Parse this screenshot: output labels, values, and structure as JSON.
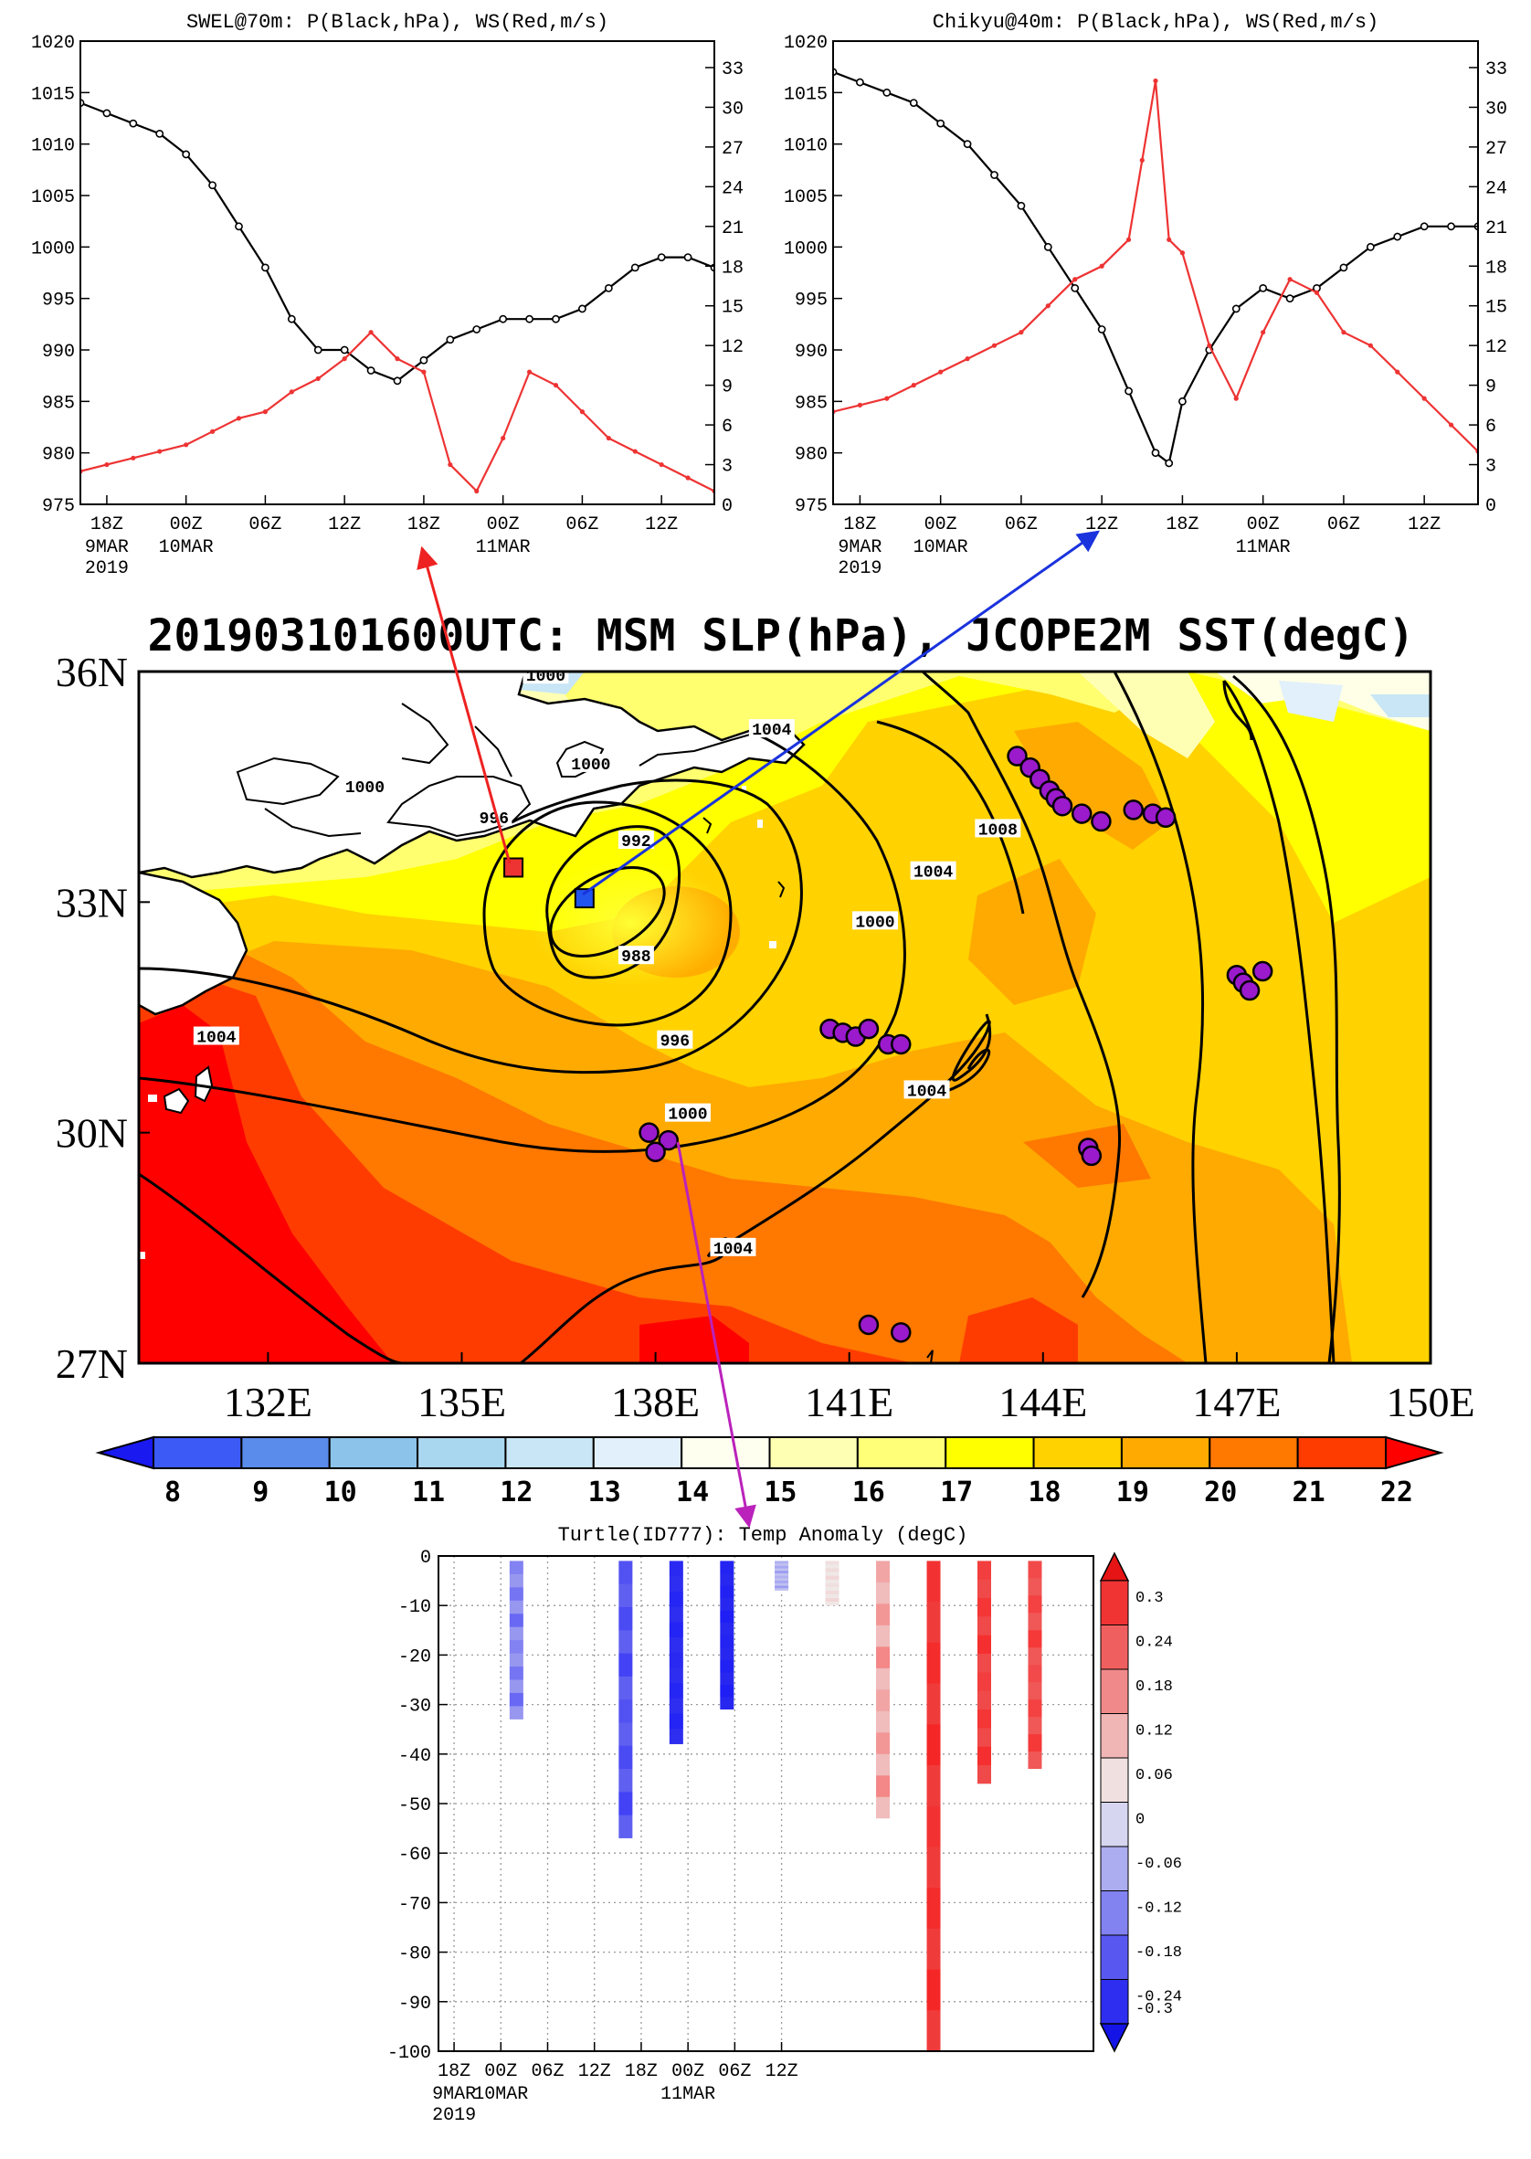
{
  "chart_data": [
    {
      "type": "line",
      "title": "SWEL@70m: P(Black,hPa), WS(Red,m/s)",
      "x_ticks": [
        "18Z",
        "00Z",
        "06Z",
        "12Z",
        "18Z",
        "00Z",
        "06Z",
        "12Z"
      ],
      "x_date_labels": [
        {
          "tick": "18Z",
          "lines": [
            "9MAR",
            "2019"
          ]
        },
        {
          "tick": "00Z",
          "lines": [
            "10MAR"
          ]
        },
        {
          "tick": "00Z",
          "lines": [
            "11MAR"
          ]
        }
      ],
      "y_left_ticks": [
        975,
        980,
        985,
        990,
        995,
        1000,
        1005,
        1010,
        1015,
        1020
      ],
      "y_right_ticks": [
        0,
        3,
        6,
        9,
        12,
        15,
        18,
        21,
        24,
        27,
        30,
        33
      ],
      "ylim_left": [
        975,
        1020
      ],
      "ylim_right": [
        0,
        35
      ],
      "xlim_hours": [
        -8,
        40
      ],
      "series": [
        {
          "name": "P",
          "color": "#000000",
          "axis": "left",
          "x": [
            -8,
            -6,
            -4,
            -2,
            0,
            2,
            4,
            6,
            8,
            10,
            12,
            14,
            16,
            18,
            20,
            22,
            24,
            26,
            28,
            30,
            32,
            34,
            36,
            38,
            40
          ],
          "y": [
            1014,
            1013,
            1012,
            1011,
            1009,
            1006,
            1002,
            998,
            993,
            990,
            990,
            988,
            987,
            989,
            991,
            992,
            993,
            993,
            993,
            994,
            996,
            998,
            999,
            999,
            998
          ]
        },
        {
          "name": "WS",
          "color": "#ee3333",
          "axis": "right",
          "x": [
            -8,
            -6,
            -4,
            -2,
            0,
            2,
            4,
            6,
            8,
            10,
            12,
            14,
            16,
            18,
            20,
            22,
            24,
            26,
            28,
            30,
            32,
            34,
            36,
            38,
            40
          ],
          "y": [
            2.5,
            3,
            3.5,
            4,
            4.5,
            5.5,
            6.5,
            7,
            8.5,
            9.5,
            11,
            13,
            11,
            10,
            3,
            1,
            5,
            10,
            9,
            7,
            5,
            4,
            3,
            2,
            1
          ]
        }
      ]
    },
    {
      "type": "line",
      "title": "Chikyu@40m: P(Black,hPa), WS(Red,m/s)",
      "x_ticks": [
        "18Z",
        "00Z",
        "06Z",
        "12Z",
        "18Z",
        "00Z",
        "06Z",
        "12Z"
      ],
      "x_date_labels": [
        {
          "tick": "18Z",
          "lines": [
            "9MAR",
            "2019"
          ]
        },
        {
          "tick": "00Z",
          "lines": [
            "10MAR"
          ]
        },
        {
          "tick": "00Z",
          "lines": [
            "11MAR"
          ]
        }
      ],
      "y_left_ticks": [
        975,
        980,
        985,
        990,
        995,
        1000,
        1005,
        1010,
        1015,
        1020
      ],
      "y_right_ticks": [
        0,
        3,
        6,
        9,
        12,
        15,
        18,
        21,
        24,
        27,
        30,
        33
      ],
      "ylim_left": [
        975,
        1020
      ],
      "ylim_right": [
        0,
        35
      ],
      "xlim_hours": [
        -8,
        40
      ],
      "series": [
        {
          "name": "P",
          "color": "#000000",
          "axis": "left",
          "x": [
            -8,
            -6,
            -4,
            -2,
            0,
            2,
            4,
            6,
            8,
            10,
            12,
            14,
            16,
            17,
            18,
            20,
            22,
            24,
            26,
            28,
            30,
            32,
            34,
            36,
            38,
            40
          ],
          "y": [
            1017,
            1016,
            1015,
            1014,
            1012,
            1010,
            1007,
            1004,
            1000,
            996,
            992,
            986,
            980,
            979,
            985,
            990,
            994,
            996,
            995,
            996,
            998,
            1000,
            1001,
            1002,
            1002,
            1002
          ]
        },
        {
          "name": "WS",
          "color": "#ee3333",
          "axis": "right",
          "x": [
            -8,
            -6,
            -4,
            -2,
            0,
            2,
            4,
            6,
            8,
            10,
            12,
            14,
            15,
            16,
            17,
            18,
            20,
            22,
            24,
            26,
            28,
            30,
            32,
            34,
            36,
            38,
            40
          ],
          "y": [
            7,
            7.5,
            8,
            9,
            10,
            11,
            12,
            13,
            15,
            17,
            18,
            20,
            26,
            32,
            20,
            19,
            12,
            8,
            13,
            17,
            16,
            13,
            12,
            10,
            8,
            6,
            4
          ]
        }
      ]
    },
    {
      "type": "heatmap",
      "title": "201903101600UTC: MSM SLP(hPa), JCOPE2M SST(degC)",
      "y_ticks": [
        "27N",
        "30N",
        "33N",
        "36N"
      ],
      "x_ticks": [
        "132E",
        "135E",
        "138E",
        "141E",
        "144E",
        "147E",
        "150E"
      ],
      "lon_range": [
        130,
        150
      ],
      "lat_range": [
        27,
        36
      ],
      "colorbar_ticks": [
        8,
        9,
        10,
        11,
        12,
        13,
        14,
        15,
        16,
        17,
        18,
        19,
        20,
        21,
        22
      ],
      "colorbar_colors": [
        "#1919f0",
        "#3c5af5",
        "#5a8ceb",
        "#8cc3eb",
        "#aad7f0",
        "#c8e6f5",
        "#e1f0fa",
        "#fffff0",
        "#ffffb4",
        "#ffff78",
        "#ffff00",
        "#ffd200",
        "#ffaa00",
        "#ff7800",
        "#ff3c00",
        "#ff0000"
      ],
      "isobar_labels": [
        {
          "text": "1000",
          "lon": 136.3,
          "lat": 35.95
        },
        {
          "text": "1000",
          "lon": 137.0,
          "lat": 34.8
        },
        {
          "text": "1004",
          "lon": 139.8,
          "lat": 35.25
        },
        {
          "text": "1000",
          "lon": 133.5,
          "lat": 34.5
        },
        {
          "text": "996",
          "lon": 135.5,
          "lat": 34.1
        },
        {
          "text": "992",
          "lon": 137.7,
          "lat": 33.8
        },
        {
          "text": "1008",
          "lon": 143.3,
          "lat": 33.95
        },
        {
          "text": "1004",
          "lon": 142.3,
          "lat": 33.4
        },
        {
          "text": "1000",
          "lon": 141.4,
          "lat": 32.75
        },
        {
          "text": "988",
          "lon": 137.7,
          "lat": 32.3
        },
        {
          "text": "996",
          "lon": 138.3,
          "lat": 31.2
        },
        {
          "text": "1004",
          "lon": 131.2,
          "lat": 31.25
        },
        {
          "text": "1004",
          "lon": 142.2,
          "lat": 30.55
        },
        {
          "text": "1000",
          "lon": 138.5,
          "lat": 30.25
        },
        {
          "text": "1004",
          "lon": 139.2,
          "lat": 28.5
        }
      ],
      "stations": [
        {
          "name": "SWEL",
          "lon": 135.8,
          "lat": 33.45,
          "color": "#ee3333"
        },
        {
          "name": "Chikyu",
          "lon": 136.9,
          "lat": 33.05,
          "color": "#2255ee"
        }
      ],
      "turtle_positions": [
        {
          "lon": 143.6,
          "lat": 34.9
        },
        {
          "lon": 143.8,
          "lat": 34.75
        },
        {
          "lon": 143.95,
          "lat": 34.6
        },
        {
          "lon": 144.1,
          "lat": 34.45
        },
        {
          "lon": 144.2,
          "lat": 34.35
        },
        {
          "lon": 144.3,
          "lat": 34.25
        },
        {
          "lon": 144.6,
          "lat": 34.15
        },
        {
          "lon": 144.9,
          "lat": 34.05
        },
        {
          "lon": 145.4,
          "lat": 34.2
        },
        {
          "lon": 145.7,
          "lat": 34.15
        },
        {
          "lon": 145.9,
          "lat": 34.1
        },
        {
          "lon": 147.0,
          "lat": 32.05
        },
        {
          "lon": 147.1,
          "lat": 31.95
        },
        {
          "lon": 147.4,
          "lat": 32.1
        },
        {
          "lon": 147.2,
          "lat": 31.85
        },
        {
          "lon": 140.7,
          "lat": 31.35
        },
        {
          "lon": 140.9,
          "lat": 31.3
        },
        {
          "lon": 141.1,
          "lat": 31.25
        },
        {
          "lon": 141.3,
          "lat": 31.35
        },
        {
          "lon": 141.6,
          "lat": 31.15
        },
        {
          "lon": 141.8,
          "lat": 31.15
        },
        {
          "lon": 137.9,
          "lat": 30.0
        },
        {
          "lon": 138.2,
          "lat": 29.9
        },
        {
          "lon": 138.0,
          "lat": 29.75
        },
        {
          "lon": 144.7,
          "lat": 29.8
        },
        {
          "lon": 144.75,
          "lat": 29.7
        },
        {
          "lon": 141.3,
          "lat": 27.5
        },
        {
          "lon": 141.8,
          "lat": 27.4
        }
      ]
    },
    {
      "type": "heatmap",
      "title": "Turtle(ID777): Temp Anomaly (degC)",
      "x_ticks": [
        "18Z",
        "00Z",
        "06Z",
        "12Z",
        "18Z",
        "00Z",
        "06Z",
        "12Z"
      ],
      "x_date_labels": [
        {
          "tick": "18Z",
          "lines": [
            "9MAR",
            "2019"
          ]
        },
        {
          "tick": "00Z",
          "lines": [
            "10MAR"
          ]
        },
        {
          "tick": "00Z",
          "lines": [
            "11MAR"
          ]
        }
      ],
      "y_ticks": [
        0,
        -10,
        -20,
        -30,
        -40,
        -50,
        -60,
        -70,
        -80,
        -90,
        -100
      ],
      "ylim": [
        -100,
        0
      ],
      "colorbar_ticks": [
        0.3,
        0.24,
        0.18,
        0.12,
        0.06,
        0,
        -0.06,
        -0.12,
        -0.18,
        -0.24,
        -0.3
      ],
      "profiles": [
        {
          "hour": 2,
          "depth": 33,
          "anomaly": -0.12
        },
        {
          "hour": 16,
          "depth": 57,
          "anomaly": -0.2
        },
        {
          "hour": 22.5,
          "depth": 38,
          "anomaly": -0.27
        },
        {
          "hour": 29,
          "depth": 31,
          "anomaly": -0.28
        },
        {
          "hour": 36,
          "depth": 7,
          "anomaly": -0.06
        },
        {
          "hour": 42.5,
          "depth": 10,
          "anomaly": 0.02
        },
        {
          "hour": 49,
          "depth": 53,
          "anomaly": 0.08
        },
        {
          "hour": 55.5,
          "depth": 100,
          "anomaly": 0.26
        },
        {
          "hour": 62,
          "depth": 46,
          "anomaly": 0.24
        },
        {
          "hour": 68.5,
          "depth": 43,
          "anomaly": 0.22
        }
      ]
    }
  ]
}
